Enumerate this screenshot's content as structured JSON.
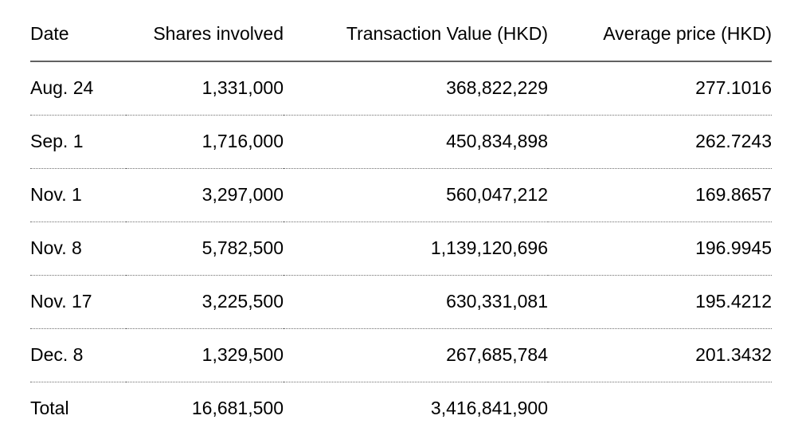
{
  "chart_data": {
    "type": "table",
    "columns": [
      "Date",
      "Shares involved",
      "Transaction Value (HKD)",
      "Average price (HKD)"
    ],
    "column_alignments": [
      "left",
      "right",
      "right",
      "right"
    ],
    "rows": [
      [
        "Aug. 24",
        "1,331,000",
        "368,822,229",
        "277.1016"
      ],
      [
        "Sep. 1",
        "1,716,000",
        "450,834,898",
        "262.7243"
      ],
      [
        "Nov. 1",
        "3,297,000",
        "560,047,212",
        "169.8657"
      ],
      [
        "Nov. 8",
        "5,782,500",
        "1,139,120,696",
        "196.9945"
      ],
      [
        "Nov. 17",
        "3,225,500",
        "630,331,081",
        "195.4212"
      ],
      [
        "Dec. 8",
        "1,329,500",
        "267,685,784",
        "201.3432"
      ],
      [
        "Total",
        "16,681,500",
        "3,416,841,900",
        ""
      ]
    ],
    "total_row_label": "Total",
    "grid": "horizontal-rules-only",
    "header_rule_style": "solid",
    "row_rule_style": "dotted"
  },
  "colors": {
    "background": "#ffffff",
    "text": "#000000",
    "header_rule": "#616161",
    "row_rule": "#6f6f6f"
  }
}
